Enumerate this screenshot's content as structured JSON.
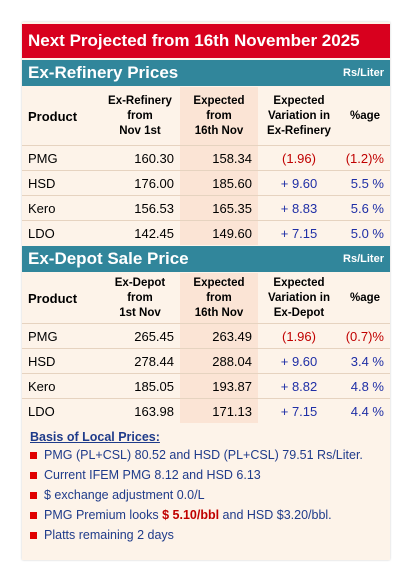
{
  "title": "Next Projected from 16th November 2025",
  "sections": [
    {
      "title": "Ex-Refinery Prices",
      "unit": "Rs/Liter",
      "headers": [
        [
          "Product"
        ],
        [
          "Ex-Refinery",
          "from",
          "Nov 1st"
        ],
        [
          "Expected",
          "from",
          "16th Nov"
        ],
        [
          "Expected",
          "Variation in",
          "Ex-Refinery"
        ],
        [
          "%age"
        ]
      ],
      "rows": [
        [
          "PMG",
          "160.30",
          "158.34",
          "(1.96)",
          "(1.2)%"
        ],
        [
          "HSD",
          "176.00",
          "185.60",
          "+ 9.60",
          "5.5 %"
        ],
        [
          "Kero",
          "156.53",
          "165.35",
          "+ 8.83",
          "5.6 %"
        ],
        [
          "LDO",
          "142.45",
          "149.60",
          "+ 7.15",
          "5.0 %"
        ]
      ]
    },
    {
      "title": "Ex-Depot Sale Price",
      "unit": "Rs/Liter",
      "headers": [
        [
          "Product"
        ],
        [
          "Ex-Depot",
          "from",
          "1st Nov"
        ],
        [
          "Expected",
          "from",
          "16th Nov"
        ],
        [
          "Expected",
          "Variation in",
          "Ex-Depot"
        ],
        [
          "%age"
        ]
      ],
      "rows": [
        [
          "PMG",
          "265.45",
          "263.49",
          "(1.96)",
          "(0.7)%"
        ],
        [
          "HSD",
          "278.44",
          "288.04",
          "+ 9.60",
          "3.4 %"
        ],
        [
          "Kero",
          "185.05",
          "193.87",
          "+ 8.82",
          "4.8 %"
        ],
        [
          "LDO",
          "163.98",
          "171.13",
          "+ 7.15",
          "4.4 %"
        ]
      ]
    }
  ],
  "notes": {
    "heading": "Basis of Local Prices:",
    "items": [
      [
        "PMG (PL+CSL) 80.52 and HSD (PL+CSL) 79.51 Rs/Liter."
      ],
      [
        "Current IFEM PMG 8.12 and HSD 6.13"
      ],
      [
        "$ exchange adjustment 0.0/L"
      ],
      [
        "PMG Premium looks ",
        "$ 5.10/bbl",
        " and HSD $3.20/bbl."
      ],
      [
        "Platts remaining 2 days"
      ]
    ]
  }
}
